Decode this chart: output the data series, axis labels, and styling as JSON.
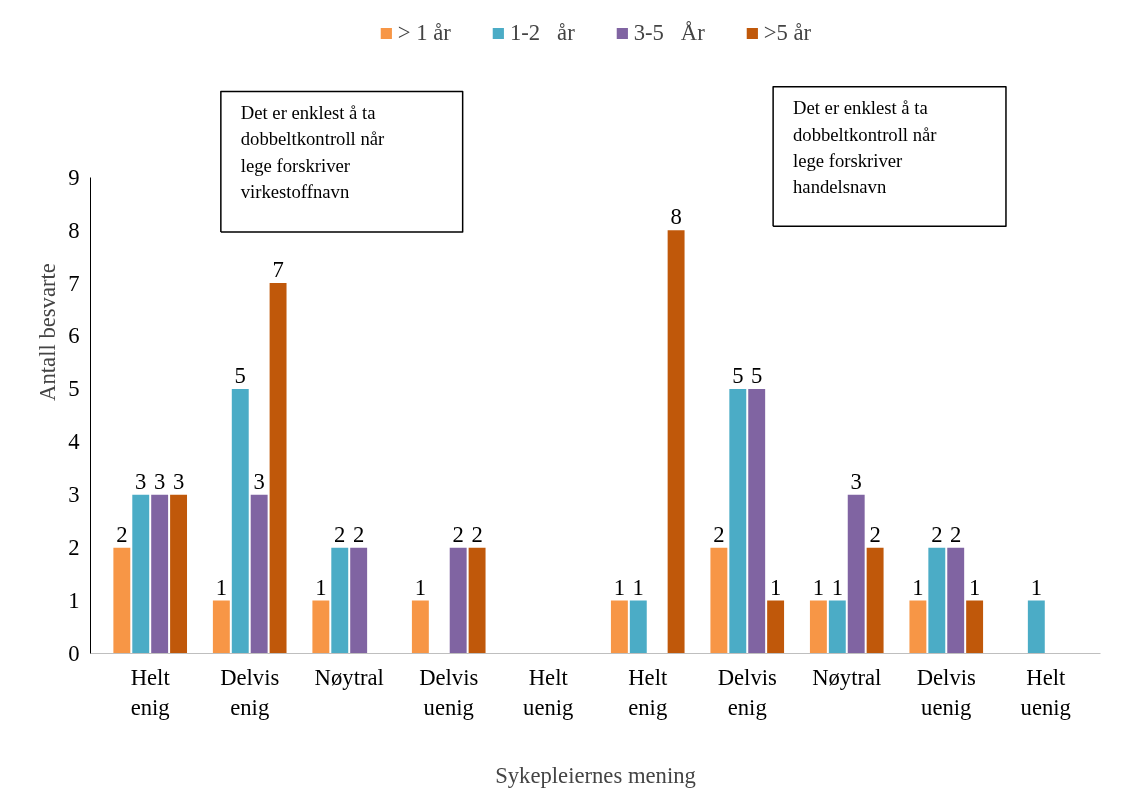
{
  "chart_data": {
    "type": "bar",
    "xlabel": "Sykepleiernes mening",
    "ylabel": "Antall besvarte",
    "categories": [
      "Helt enig",
      "Delvis enig",
      "Nøytral",
      "Delvis uenig",
      "Helt uenig",
      "Helt enig",
      "Delvis enig",
      "Nøytral",
      "Delvis uenig",
      "Helt uenig"
    ],
    "series": [
      {
        "name": "> 1 år",
        "color": "#f79646",
        "values": [
          2,
          1,
          1,
          1,
          null,
          1,
          2,
          1,
          1,
          null
        ]
      },
      {
        "name": "1-2   år",
        "color": "#4bacc6",
        "values": [
          3,
          5,
          2,
          null,
          null,
          1,
          5,
          1,
          2,
          1
        ]
      },
      {
        "name": "3-5   År",
        "color": "#8064a2",
        "values": [
          3,
          3,
          2,
          2,
          null,
          null,
          5,
          3,
          2,
          null
        ]
      },
      {
        "name": ">5 år",
        "color": "#c0580a",
        "values": [
          3,
          7,
          null,
          2,
          null,
          8,
          1,
          2,
          1,
          null
        ]
      }
    ],
    "ylim": [
      0,
      9
    ],
    "yticks": [
      0,
      1,
      2,
      3,
      4,
      5,
      6,
      7,
      8,
      9
    ],
    "data_labels": true,
    "legend": "top",
    "grid": false,
    "annotations": [
      "Det er enklest å ta\ndobbeltkontroll når\nlege forskriver\nvirkestoffnavn",
      "Det er enklest å ta\ndobbeltkontroll når\nlege forskriver\nhandelsnavn"
    ]
  }
}
